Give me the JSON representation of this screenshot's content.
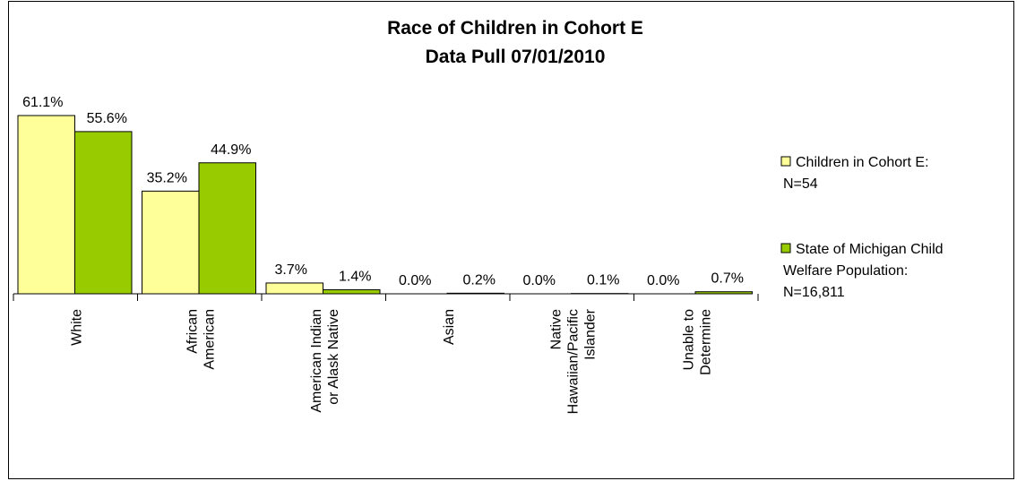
{
  "chart_data": {
    "type": "bar",
    "title": "Race of Children in Cohort E",
    "subtitle": "Data Pull 07/01/2010",
    "categories": [
      [
        "White"
      ],
      [
        "African",
        "American"
      ],
      [
        "American Indian",
        "or Alask Native"
      ],
      [
        "Asian"
      ],
      [
        "Native",
        "Hawaiian/Pacific",
        "Islander"
      ],
      [
        "Unable to",
        "Determine"
      ]
    ],
    "series": [
      {
        "name": [
          "Children in Cohort E:",
          "N=54"
        ],
        "color": "#FFFF99",
        "values": [
          61.1,
          35.2,
          3.7,
          0.0,
          0.0,
          0.0
        ],
        "labels": [
          "61.1%",
          "35.2%",
          "3.7%",
          "0.0%",
          "0.0%",
          "0.0%"
        ]
      },
      {
        "name": [
          "State of Michigan Child",
          "Welfare Population:",
          "N=16,811"
        ],
        "color": "#99CC00",
        "values": [
          55.6,
          44.9,
          1.4,
          0.2,
          0.1,
          0.7
        ],
        "labels": [
          "55.6%",
          "44.9%",
          "1.4%",
          "0.2%",
          "0.1%",
          "0.7%"
        ]
      }
    ],
    "ylim": [
      0,
      61.1
    ],
    "grid": false,
    "legend": "right"
  }
}
